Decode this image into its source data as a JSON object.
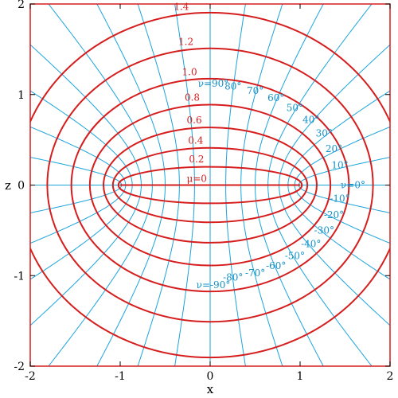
{
  "colors": {
    "mu_curve": "#d61d1d",
    "nu_curve": "#1aa4dc",
    "nu_label": "#1591c8",
    "mu_label": "#d61d1d",
    "frame": "#d61d1d",
    "background": "#ffffff"
  },
  "chart_data": {
    "type": "line",
    "xlabel": "x",
    "ylabel": "z",
    "xlim": [
      -2,
      2
    ],
    "ylim": [
      -2,
      2
    ],
    "x_ticks": [
      "-2",
      "-1",
      "0",
      "1",
      "2"
    ],
    "y_ticks": [
      "2",
      "1",
      "0",
      "-1",
      "-2"
    ],
    "mu_curves": [
      {
        "mu": 0.0,
        "label": "μ=0"
      },
      {
        "mu": 0.2,
        "label": "0.2"
      },
      {
        "mu": 0.4,
        "label": "0.4"
      },
      {
        "mu": 0.6,
        "label": "0.6"
      },
      {
        "mu": 0.8,
        "label": "0.8"
      },
      {
        "mu": 1.0,
        "label": "1.0"
      },
      {
        "mu": 1.2,
        "label": "1.2"
      },
      {
        "mu": 1.4,
        "label": "1.4"
      }
    ],
    "nu_curves_deg": [
      -90,
      -80,
      -70,
      -60,
      -50,
      -40,
      -30,
      -20,
      -10,
      0,
      10,
      20,
      30,
      40,
      50,
      60,
      70,
      80,
      90
    ],
    "nu_labels": [
      {
        "nu": 90,
        "text": "ν=90°"
      },
      {
        "nu": 80,
        "text": "80°"
      },
      {
        "nu": 70,
        "text": "70°"
      },
      {
        "nu": 60,
        "text": "60°"
      },
      {
        "nu": 50,
        "text": "50°"
      },
      {
        "nu": 40,
        "text": "40°"
      },
      {
        "nu": 30,
        "text": "30°"
      },
      {
        "nu": 20,
        "text": "20°"
      },
      {
        "nu": 10,
        "text": "10°"
      },
      {
        "nu": 0,
        "text": "ν=0°"
      },
      {
        "nu": -10,
        "text": "-10°"
      },
      {
        "nu": -20,
        "text": "-20°"
      },
      {
        "nu": -30,
        "text": "-30°"
      },
      {
        "nu": -40,
        "text": "-40°"
      },
      {
        "nu": -50,
        "text": "-50°"
      },
      {
        "nu": -60,
        "text": "-60°"
      },
      {
        "nu": -70,
        "text": "-70°"
      },
      {
        "nu": -80,
        "text": "-80°"
      },
      {
        "nu": -90,
        "text": "ν=-90°"
      }
    ]
  }
}
